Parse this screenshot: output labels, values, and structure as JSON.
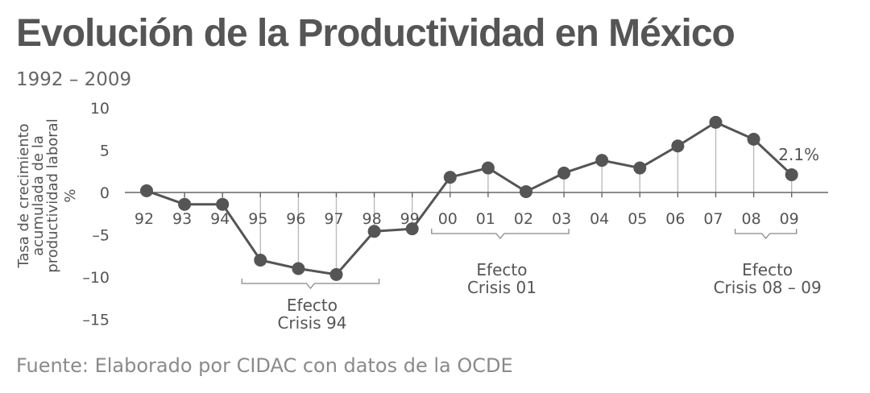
{
  "title": "Evolución de la Productividad en México",
  "subtitle": "1992 – 2009",
  "source": "Fuente: Elaborado por CIDAC con datos de la OCDE",
  "colors": {
    "line": "#555555",
    "marker": "#555555",
    "drop": "#bbbbbb",
    "text": "#555555"
  },
  "chart_data": {
    "type": "line",
    "x": [
      "92",
      "93",
      "94",
      "95",
      "96",
      "97",
      "98",
      "99",
      "00",
      "01",
      "02",
      "03",
      "04",
      "05",
      "06",
      "07",
      "08",
      "09"
    ],
    "values": [
      0.2,
      -1.4,
      -1.4,
      -8.0,
      -9.0,
      -9.7,
      -4.6,
      -4.3,
      1.8,
      2.9,
      0.1,
      2.3,
      3.8,
      2.9,
      5.5,
      8.3,
      6.3,
      2.1
    ],
    "ylabel": [
      "Tasa de crecimiento",
      "acumulada de la",
      "productividad laboral",
      "%"
    ],
    "ylim": [
      -15,
      10
    ],
    "yticks": [
      10,
      5,
      0,
      -5,
      -10,
      -15
    ],
    "last_label": "2.1%",
    "annotations": [
      {
        "lines": [
          "Efecto",
          "Crisis 94"
        ],
        "from": "95",
        "to": "98"
      },
      {
        "lines": [
          "Efecto",
          "Crisis 01"
        ],
        "from": "00",
        "to": "03"
      },
      {
        "lines": [
          "Efecto",
          "Crisis 08 – 09"
        ],
        "from": "08",
        "to": "09"
      }
    ]
  }
}
